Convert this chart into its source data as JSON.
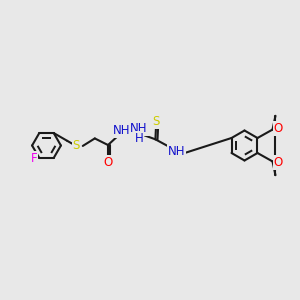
{
  "background_color": "#e8e8e8",
  "bond_color": "#1a1a1a",
  "bond_width": 1.5,
  "atoms": {
    "F": {
      "color": "#ee00ee"
    },
    "S": {
      "color": "#cccc00"
    },
    "O": {
      "color": "#ff0000"
    },
    "N": {
      "color": "#1111cc"
    },
    "H": {
      "color": "#1111cc"
    }
  },
  "figsize": [
    3.0,
    3.0
  ],
  "dpi": 100,
  "xlim": [
    0,
    10
  ],
  "ylim": [
    0,
    10
  ]
}
